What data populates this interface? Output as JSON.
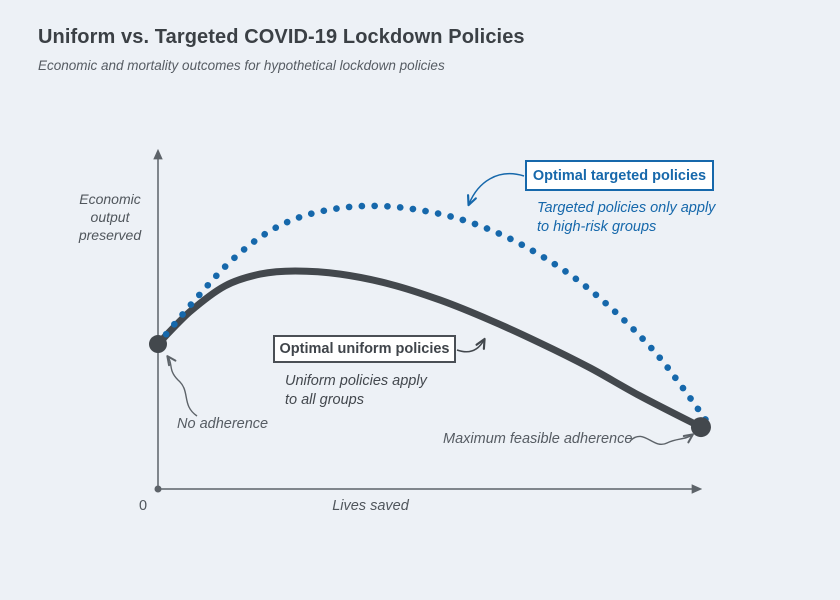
{
  "header": {
    "title": "Uniform vs. Targeted COVID-19 Lockdown Policies",
    "subtitle": "Economic and mortality outcomes for hypothetical lockdown policies"
  },
  "chart_data": {
    "type": "line",
    "title": "Uniform vs. Targeted COVID-19 Lockdown Policies",
    "subtitle": "Economic and mortality outcomes for hypothetical lockdown policies",
    "xlabel": "Lives saved",
    "ylabel": "Economic\noutput\npreserved",
    "origin_tick_label": "0",
    "xlim": [
      0,
      1
    ],
    "ylim": [
      0,
      1
    ],
    "grid": false,
    "axes_note": "Conceptual axes with no numeric scale; point values are normalized 0-1 estimates read from the figure",
    "series": [
      {
        "name": "Optimal uniform policies",
        "style": "solid",
        "color": "#43484d",
        "points": [
          [
            0,
            0.419
          ],
          [
            0.058,
            0.512
          ],
          [
            0.122,
            0.587
          ],
          [
            0.186,
            0.621
          ],
          [
            0.25,
            0.63
          ],
          [
            0.332,
            0.621
          ],
          [
            0.423,
            0.592
          ],
          [
            0.514,
            0.546
          ],
          [
            0.605,
            0.488
          ],
          [
            0.696,
            0.422
          ],
          [
            0.787,
            0.35
          ],
          [
            0.878,
            0.269
          ],
          [
            0.989,
            0.179
          ]
        ]
      },
      {
        "name": "Optimal targeted policies",
        "style": "dotted",
        "color": "#1668ab",
        "points": [
          [
            0,
            0.419
          ],
          [
            0.067,
            0.546
          ],
          [
            0.131,
            0.656
          ],
          [
            0.195,
            0.737
          ],
          [
            0.259,
            0.786
          ],
          [
            0.332,
            0.812
          ],
          [
            0.404,
            0.818
          ],
          [
            0.477,
            0.806
          ],
          [
            0.55,
            0.78
          ],
          [
            0.623,
            0.737
          ],
          [
            0.696,
            0.676
          ],
          [
            0.769,
            0.598
          ],
          [
            0.841,
            0.5
          ],
          [
            0.905,
            0.396
          ],
          [
            0.951,
            0.303
          ],
          [
            0.998,
            0.199
          ]
        ]
      }
    ],
    "endpoints": {
      "start": {
        "label": "No adherence",
        "point": [
          0,
          0.419
        ]
      },
      "end": {
        "label": "Maximum feasible adherence",
        "point": [
          0.989,
          0.179
        ]
      }
    }
  },
  "annotations": {
    "targeted": {
      "box_label": "Optimal targeted policies",
      "caption": "Targeted policies only apply\nto high-risk groups"
    },
    "uniform": {
      "box_label": "Optimal uniform policies",
      "caption": "Uniform policies apply\nto all groups"
    },
    "no_adherence": "No adherence",
    "max_adherence": "Maximum feasible adherence"
  },
  "colors": {
    "background": "#edf1f6",
    "accent_blue": "#1668ab",
    "curve_dark": "#43484d",
    "axis_gray": "#5d6369",
    "title_text": "#3b4045",
    "muted_text": "#565c63"
  }
}
